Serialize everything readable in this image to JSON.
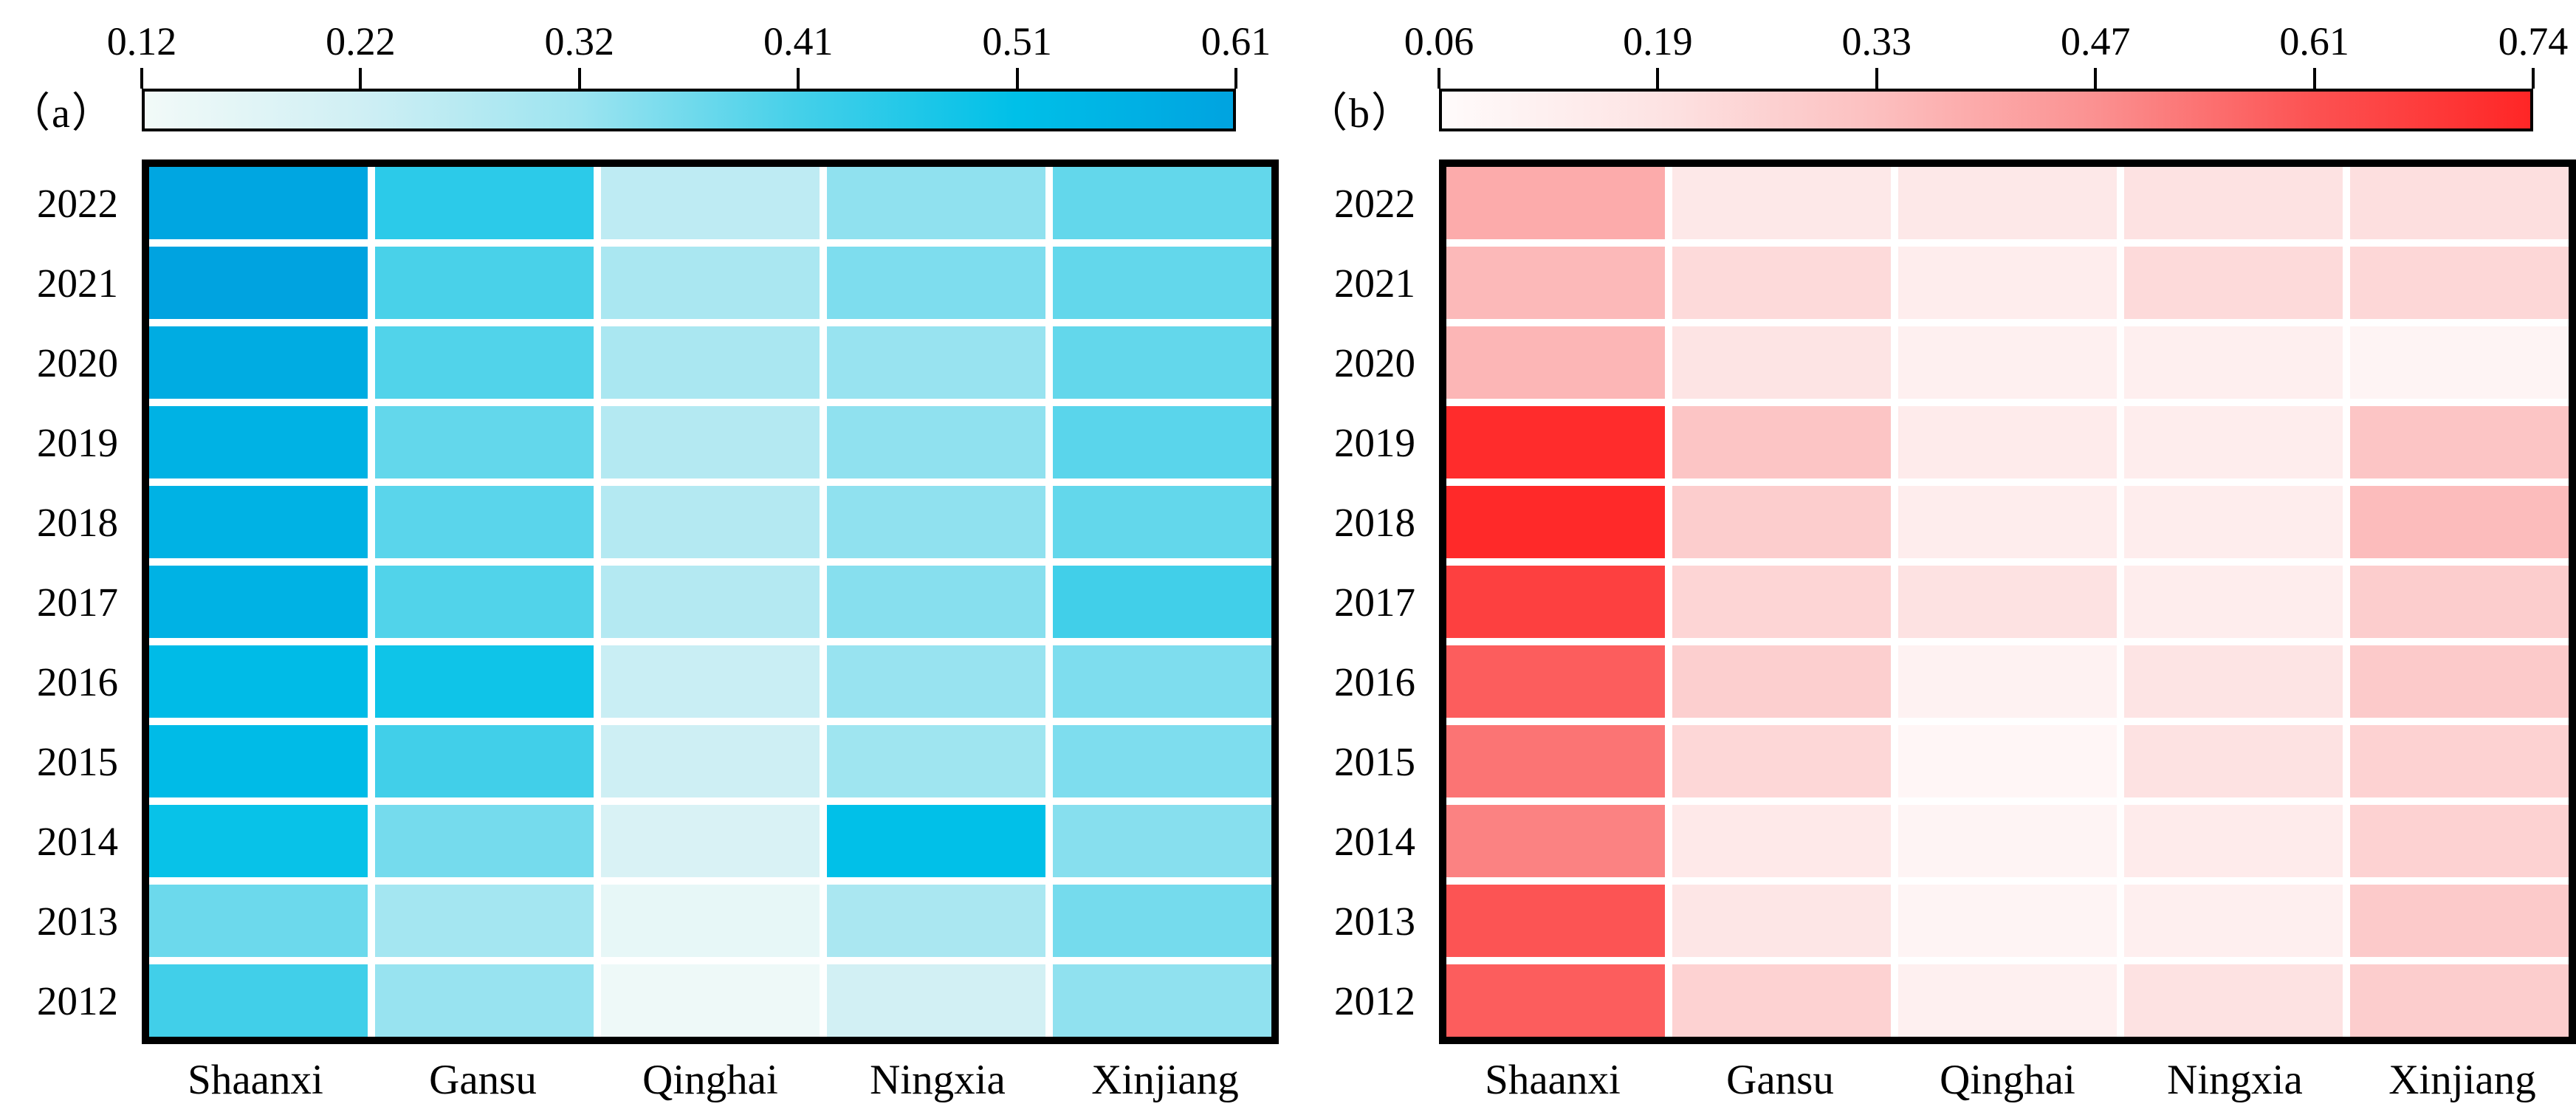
{
  "chart_data": [
    {
      "type": "heatmap",
      "panel_label": "（a）",
      "x_categories": [
        "Shaanxi",
        "Gansu",
        "Qinghai",
        "Ningxia",
        "Xinjiang"
      ],
      "y_categories": [
        "2022",
        "2021",
        "2020",
        "2019",
        "2018",
        "2017",
        "2016",
        "2015",
        "2014",
        "2013",
        "2012"
      ],
      "values": [
        [
          0.6,
          0.45,
          0.25,
          0.33,
          0.38
        ],
        [
          0.61,
          0.41,
          0.29,
          0.35,
          0.38
        ],
        [
          0.58,
          0.4,
          0.29,
          0.32,
          0.38
        ],
        [
          0.56,
          0.38,
          0.27,
          0.33,
          0.39
        ],
        [
          0.56,
          0.39,
          0.27,
          0.33,
          0.38
        ],
        [
          0.56,
          0.4,
          0.27,
          0.34,
          0.42
        ],
        [
          0.53,
          0.49,
          0.23,
          0.32,
          0.35
        ],
        [
          0.53,
          0.42,
          0.22,
          0.31,
          0.35
        ],
        [
          0.5,
          0.36,
          0.19,
          0.51,
          0.34
        ],
        [
          0.37,
          0.3,
          0.15,
          0.29,
          0.36
        ],
        [
          0.42,
          0.32,
          0.13,
          0.21,
          0.33
        ]
      ],
      "vmin": 0.12,
      "vmax": 0.61,
      "colorbar_tick_labels": [
        "0.12",
        "0.22",
        "0.32",
        "0.41",
        "0.51",
        "0.61"
      ],
      "colormap_stops": [
        "#f2faf8",
        "#cfeff4",
        "#9ce4f0",
        "#45d0e9",
        "#00c0e8",
        "#00a3e0"
      ],
      "colorbar_position": "top",
      "grid_gap_color": "#ffffff",
      "frame_color": "#000000"
    },
    {
      "type": "heatmap",
      "panel_label": "（b）",
      "x_categories": [
        "Shaanxi",
        "Gansu",
        "Qinghai",
        "Ningxia",
        "Xinjiang"
      ],
      "y_categories": [
        "2022",
        "2021",
        "2020",
        "2019",
        "2018",
        "2017",
        "2016",
        "2015",
        "2014",
        "2013",
        "2012"
      ],
      "values": [
        [
          0.39,
          0.17,
          0.17,
          0.2,
          0.21
        ],
        [
          0.35,
          0.23,
          0.14,
          0.23,
          0.24
        ],
        [
          0.36,
          0.19,
          0.12,
          0.13,
          0.1
        ],
        [
          0.72,
          0.31,
          0.15,
          0.14,
          0.31
        ],
        [
          0.73,
          0.28,
          0.14,
          0.14,
          0.34
        ],
        [
          0.66,
          0.25,
          0.2,
          0.14,
          0.28
        ],
        [
          0.58,
          0.27,
          0.11,
          0.19,
          0.29
        ],
        [
          0.53,
          0.24,
          0.09,
          0.2,
          0.26
        ],
        [
          0.5,
          0.16,
          0.1,
          0.15,
          0.26
        ],
        [
          0.6,
          0.18,
          0.1,
          0.13,
          0.29
        ],
        [
          0.58,
          0.26,
          0.12,
          0.2,
          0.28
        ]
      ],
      "vmin": 0.06,
      "vmax": 0.74,
      "colorbar_tick_labels": [
        "0.06",
        "0.19",
        "0.33",
        "0.47",
        "0.61",
        "0.74"
      ],
      "colormap_stops": [
        "#fffbfb",
        "#fde3e3",
        "#fcbfbf",
        "#fb9191",
        "#fc5252",
        "#ff2626"
      ],
      "colorbar_position": "top",
      "grid_gap_color": "#ffffff",
      "frame_color": "#000000"
    }
  ]
}
